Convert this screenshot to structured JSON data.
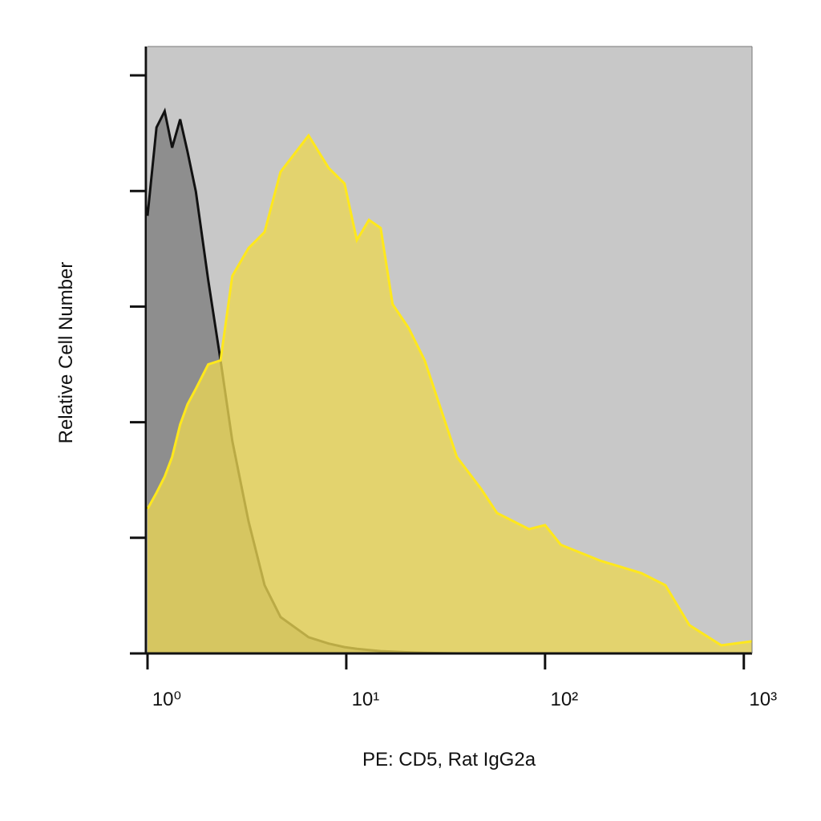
{
  "chart_data": {
    "type": "area",
    "xlabel": "PE: CD5, Rat IgG2a",
    "ylabel": "Relative Cell Number",
    "xscale": "log",
    "xlim": [
      1,
      1100
    ],
    "xticks": [
      {
        "value": 1,
        "label": "10⁰"
      },
      {
        "value": 10,
        "label": "10¹"
      },
      {
        "value": 100,
        "label": "10²"
      },
      {
        "value": 1000,
        "label": "10³"
      }
    ],
    "ylim": [
      0,
      105
    ],
    "yticks": [
      0,
      20,
      40,
      60,
      80,
      100
    ],
    "background": "#c8c8c8",
    "x": [
      1,
      1.11,
      1.22,
      1.33,
      1.46,
      1.59,
      1.75,
      2.02,
      2.33,
      2.67,
      3.22,
      3.88,
      4.67,
      6.46,
      8.15,
      9.8,
      11.3,
      13.0,
      14.9,
      17.1,
      20.6,
      24.8,
      36,
      47.6,
      57.3,
      83,
      100,
      120,
      191,
      305,
      403,
      532,
      771,
      1097
    ],
    "series": [
      {
        "name": "Rat IgG2a",
        "color": "#8e8e8e",
        "edge_color": "#111111",
        "values": [
          75.7,
          91.0,
          93.8,
          87.5,
          92.4,
          86.8,
          79.9,
          64.6,
          50.7,
          36.8,
          22.9,
          11.8,
          6.3,
          2.8,
          1.7,
          1.1,
          0.8,
          0.6,
          0.4,
          0.3,
          0.2,
          0.1,
          0,
          0,
          0,
          0,
          0,
          0,
          0,
          0,
          0,
          0,
          0,
          0
        ]
      },
      {
        "name": "CD5",
        "color": "#ead655",
        "edge_color": "#ffe81c",
        "values": [
          25.0,
          27.8,
          30.6,
          34.0,
          39.6,
          43.1,
          45.8,
          50.0,
          50.7,
          65.3,
          70.1,
          72.9,
          83.3,
          89.6,
          84.0,
          81.3,
          71.5,
          75.0,
          73.6,
          60.4,
          56.3,
          50.7,
          34.0,
          28.5,
          24.3,
          21.5,
          22.2,
          18.8,
          16.0,
          13.9,
          11.8,
          4.9,
          1.4,
          2.1
        ]
      }
    ]
  }
}
